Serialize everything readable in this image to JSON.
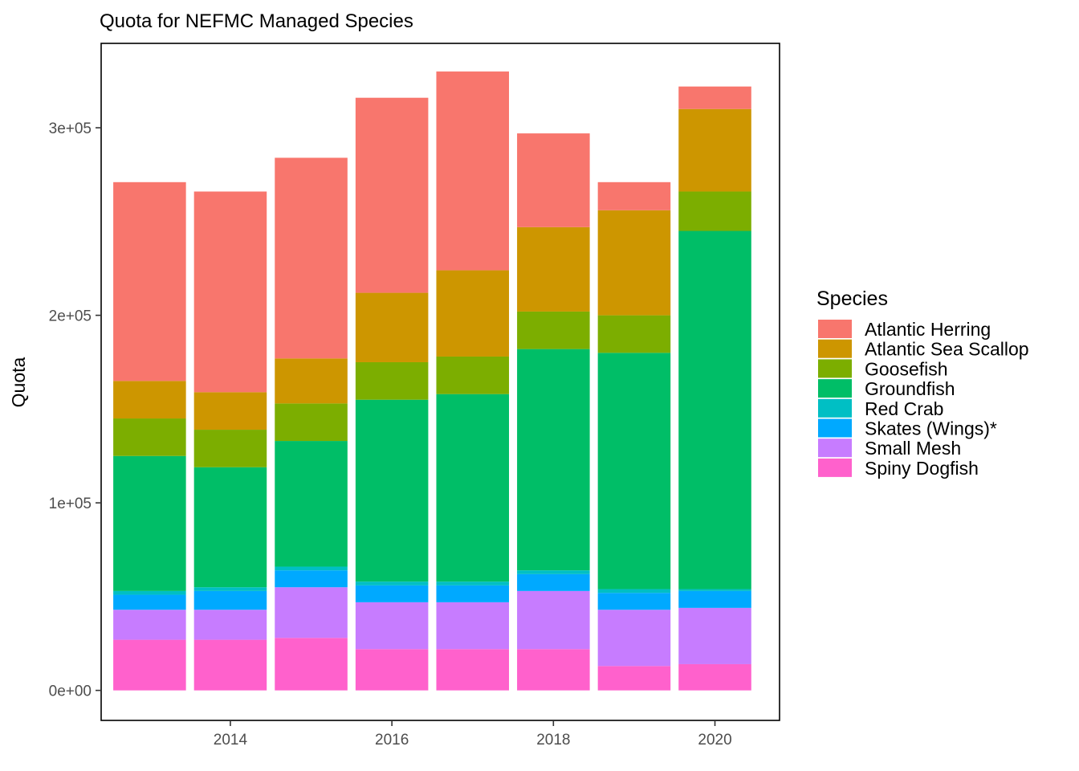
{
  "chart_data": {
    "type": "bar",
    "stacked": true,
    "title": "Quota for NEFMC Managed Species",
    "xlabel": "",
    "ylabel": "Quota",
    "x": [
      2013,
      2014,
      2015,
      2016,
      2017,
      2018,
      2019,
      2020
    ],
    "x_ticks": [
      2014,
      2016,
      2018,
      2020
    ],
    "x_tick_labels": [
      "2014",
      "2016",
      "2018",
      "2020"
    ],
    "xlim": [
      2012.4,
      2020.8
    ],
    "ylim": [
      -16000,
      345000
    ],
    "y_ticks": [
      0,
      100000,
      200000,
      300000
    ],
    "y_tick_labels": [
      "0e+00",
      "1e+05",
      "2e+05",
      "3e+05"
    ],
    "stack_order_bottom_to_top": [
      "Spiny Dogfish",
      "Small Mesh",
      "Skates (Wings)*",
      "Red Crab",
      "Groundfish",
      "Goosefish",
      "Atlantic Sea Scallop",
      "Atlantic Herring"
    ],
    "series": [
      {
        "name": "Atlantic Herring",
        "color": "#F8766D",
        "values": [
          106000,
          107000,
          107000,
          104000,
          106000,
          50000,
          15000,
          12000
        ]
      },
      {
        "name": "Atlantic Sea Scallop",
        "color": "#CD9600",
        "values": [
          20000,
          20000,
          24000,
          37000,
          46000,
          45000,
          56000,
          44000
        ]
      },
      {
        "name": "Goosefish",
        "color": "#7CAE00",
        "values": [
          20000,
          20000,
          20000,
          20000,
          20000,
          20000,
          20000,
          21000
        ]
      },
      {
        "name": "Groundfish",
        "color": "#00BE67",
        "values": [
          72000,
          64000,
          67000,
          97000,
          100000,
          118000,
          126000,
          191000
        ]
      },
      {
        "name": "Red Crab",
        "color": "#00BFC4",
        "values": [
          2000,
          2000,
          2000,
          2000,
          2000,
          2000,
          2000,
          1000
        ]
      },
      {
        "name": "Skates (Wings)*",
        "color": "#00A9FF",
        "values": [
          8000,
          10000,
          9000,
          9000,
          9000,
          9000,
          9000,
          9000
        ]
      },
      {
        "name": "Small Mesh",
        "color": "#C77CFF",
        "values": [
          16000,
          16000,
          27000,
          25000,
          25000,
          31000,
          30000,
          30000
        ]
      },
      {
        "name": "Spiny Dogfish",
        "color": "#FF61CC",
        "values": [
          27000,
          27000,
          28000,
          22000,
          22000,
          22000,
          13000,
          14000
        ]
      }
    ],
    "legend": {
      "title": "Species",
      "placement": "right"
    },
    "grid": false
  }
}
